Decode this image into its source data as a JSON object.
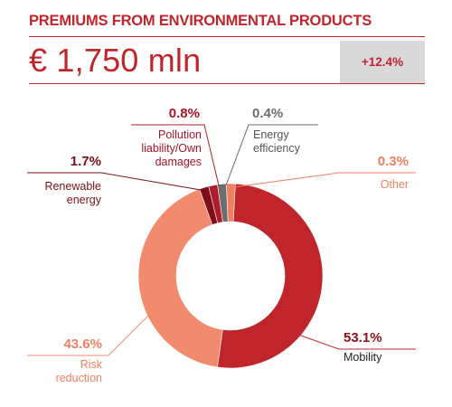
{
  "header": {
    "title": "PREMIUMS FROM ENVIRONMENTAL PRODUCTS",
    "amount": "€ 1,750 mln",
    "growth": "+12.4%"
  },
  "colors": {
    "accent": "#c0252c",
    "grey_box": "#d9d9d9"
  },
  "chart_data": {
    "type": "pie",
    "title": "PREMIUMS FROM ENVIRONMENTAL PRODUCTS",
    "donut": true,
    "slices": [
      {
        "key": "mobility",
        "label": "Mobility",
        "label_lines": [
          "Mobility"
        ],
        "value": 53.1,
        "value_label": "53.1%",
        "color": "#c0252c",
        "text_color": "#8e1018"
      },
      {
        "key": "risk",
        "label": "Risk reduction",
        "label_lines": [
          "Risk",
          "reduction"
        ],
        "value": 43.6,
        "value_label": "43.6%",
        "color": "#f28b6e",
        "text_color": "#f07f62"
      },
      {
        "key": "renewable",
        "label": "Renewable energy",
        "label_lines": [
          "Renewable",
          "energy"
        ],
        "value": 1.7,
        "value_label": "1.7%",
        "color": "#7d0f18",
        "text_color": "#7d0f18"
      },
      {
        "key": "pollution",
        "label": "Pollution liability/Own damages",
        "label_lines": [
          "Pollution",
          "liability/Own",
          "damages"
        ],
        "value": 0.8,
        "value_label": "0.8%",
        "color": "#b01a2a",
        "text_color": "#a51427"
      },
      {
        "key": "energy_eff",
        "label": "Energy efficiency",
        "label_lines": [
          "Energy",
          "efficiency"
        ],
        "value": 0.4,
        "value_label": "0.4%",
        "color": "#6d6d6d",
        "text_color": "#6d6d6d"
      },
      {
        "key": "other",
        "label": "Other",
        "label_lines": [
          "Other"
        ],
        "value": 0.3,
        "value_label": "0.3%",
        "color": "#f07f62",
        "text_color": "#f07f62"
      }
    ]
  }
}
